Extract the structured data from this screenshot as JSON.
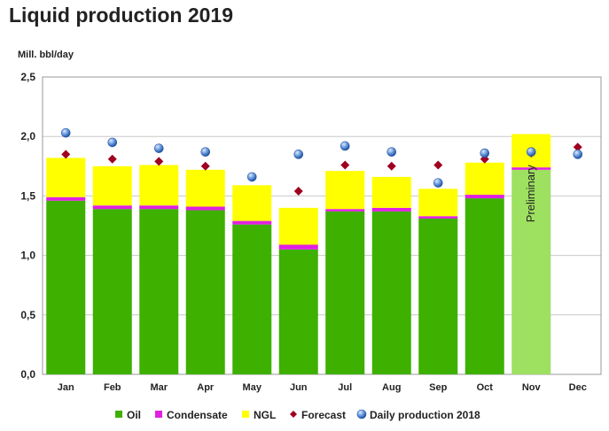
{
  "chart_data": {
    "type": "bar",
    "title": "Liquid production 2019",
    "ylabel": "Mill. bbl/day",
    "xlabel": "",
    "ylim": [
      0,
      2.5
    ],
    "yticks": [
      "0,0",
      "0,5",
      "1,0",
      "1,5",
      "2,0",
      "2,5"
    ],
    "ytick_values": [
      0,
      0.5,
      1.0,
      1.5,
      2.0,
      2.5
    ],
    "grid": true,
    "categories": [
      "Jan",
      "Feb",
      "Mar",
      "Apr",
      "May",
      "Jun",
      "Jul",
      "Aug",
      "Sep",
      "Oct",
      "Nov",
      "Dec"
    ],
    "stacked": true,
    "series": [
      {
        "name": "Oil",
        "kind": "bar",
        "color": "#3db000",
        "values": [
          1.46,
          1.39,
          1.39,
          1.38,
          1.26,
          1.05,
          1.37,
          1.37,
          1.31,
          1.48,
          1.72,
          null
        ]
      },
      {
        "name": "Condensate",
        "kind": "bar",
        "color": "#e020e0",
        "values": [
          0.03,
          0.03,
          0.03,
          0.03,
          0.03,
          0.04,
          0.02,
          0.03,
          0.02,
          0.03,
          0.02,
          null
        ]
      },
      {
        "name": "NGL",
        "kind": "bar",
        "color": "#ffff00",
        "values": [
          0.33,
          0.33,
          0.34,
          0.31,
          0.3,
          0.31,
          0.32,
          0.26,
          0.23,
          0.27,
          0.28,
          null
        ]
      },
      {
        "name": "Forecast",
        "kind": "marker",
        "marker": "diamond",
        "color": "#a00020",
        "values": [
          1.85,
          1.81,
          1.79,
          1.75,
          1.66,
          1.54,
          1.76,
          1.75,
          1.76,
          1.81,
          1.86,
          1.91
        ]
      },
      {
        "name": "Daily production 2018",
        "kind": "marker",
        "marker": "circle",
        "color": "#5b8fd6",
        "values": [
          2.03,
          1.95,
          1.9,
          1.87,
          1.66,
          1.85,
          1.92,
          1.87,
          1.61,
          1.86,
          1.87,
          1.85
        ]
      }
    ],
    "preliminary_index": 10,
    "preliminary_color": "#9ee060",
    "annotations": [
      {
        "category": "Nov",
        "text": "Preliminary"
      }
    ],
    "legend": "bottom"
  }
}
